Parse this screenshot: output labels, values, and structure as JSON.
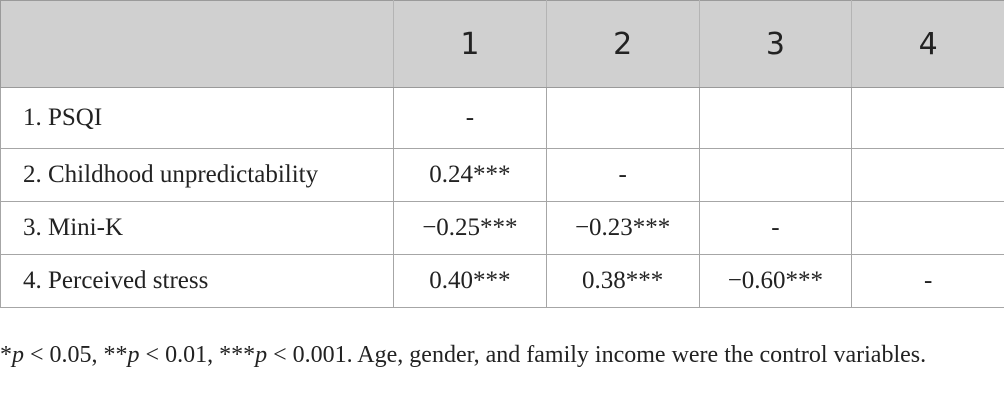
{
  "table": {
    "header": [
      "",
      "1",
      "2",
      "3",
      "4"
    ],
    "rows": [
      {
        "label": "1. PSQI",
        "cells": [
          "-",
          "",
          "",
          ""
        ]
      },
      {
        "label": "2. Childhood unpredictability",
        "cells": [
          "0.24***",
          "-",
          "",
          ""
        ]
      },
      {
        "label": "3. Mini-K",
        "cells": [
          "−0.25***",
          "−0.23***",
          "-",
          ""
        ]
      },
      {
        "label": "4. Perceived stress",
        "cells": [
          "0.40***",
          "0.38***",
          "−0.60***",
          "-"
        ]
      }
    ]
  },
  "footnote": {
    "s1": "*",
    "p1": "p",
    "s2": " < 0.05, **",
    "p2": "p",
    "s3": " < 0.01, ***",
    "p3": "p",
    "s4": " < 0.001. Age, gender, and family income were the control variables."
  }
}
